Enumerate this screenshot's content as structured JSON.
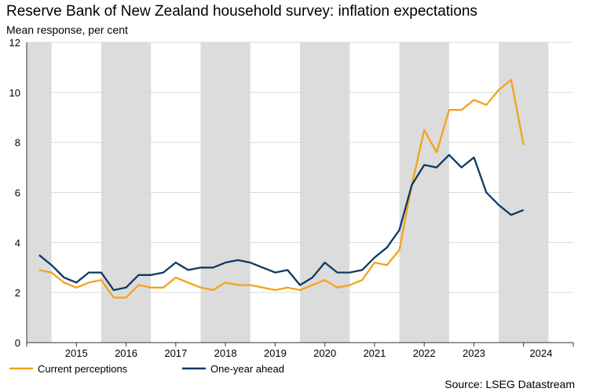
{
  "header": {
    "title": "Reserve Bank of New Zealand household survey: inflation expectations",
    "subtitle": "Mean response, per cent"
  },
  "footer": {
    "source": "Source: LSEG Datastream"
  },
  "colors": {
    "current": "#F4A21D",
    "one_year": "#0D3A63",
    "band": "#DCDCDC",
    "grid": "#D9D9D9",
    "axis": "#333333"
  },
  "chart_data": {
    "type": "line",
    "title": "Reserve Bank of New Zealand household survey: inflation expectations",
    "ylabel": "Mean response, per cent",
    "xlabel": "",
    "ylim": [
      0,
      12
    ],
    "yticks": [
      0,
      2,
      4,
      6,
      8,
      10,
      12
    ],
    "xlim": [
      2014.0,
      2025.0
    ],
    "x_tick_labels": [
      {
        "label": "2015",
        "pos": 2015.0
      },
      {
        "label": "2016",
        "pos": 2016.0
      },
      {
        "label": "2017",
        "pos": 2017.0
      },
      {
        "label": "2018",
        "pos": 2018.0
      },
      {
        "label": "2019",
        "pos": 2019.0
      },
      {
        "label": "2020",
        "pos": 2020.0
      },
      {
        "label": "2021",
        "pos": 2021.0
      },
      {
        "label": "2022",
        "pos": 2022.0
      },
      {
        "label": "2023",
        "pos": 2023.0
      },
      {
        "label": "2024",
        "pos": 2024.35
      }
    ],
    "shaded_periods": [
      [
        2014.0,
        2014.5
      ],
      [
        2015.5,
        2016.5
      ],
      [
        2017.5,
        2018.5
      ],
      [
        2019.5,
        2020.5
      ],
      [
        2021.5,
        2022.5
      ],
      [
        2023.5,
        2024.5
      ]
    ],
    "x": [
      2014.25,
      2014.5,
      2014.75,
      2015.0,
      2015.25,
      2015.5,
      2015.75,
      2016.0,
      2016.25,
      2016.5,
      2016.75,
      2017.0,
      2017.25,
      2017.5,
      2017.75,
      2018.0,
      2018.25,
      2018.5,
      2018.75,
      2019.0,
      2019.25,
      2019.5,
      2019.75,
      2020.0,
      2020.25,
      2020.5,
      2020.75,
      2021.0,
      2021.25,
      2021.5,
      2021.75,
      2022.0,
      2022.25,
      2022.5,
      2022.75,
      2023.0,
      2023.25,
      2023.5,
      2023.75,
      2024.0,
      2024.25
    ],
    "series": [
      {
        "name": "Current perceptions",
        "color": "#F4A21D",
        "values": [
          2.9,
          2.8,
          2.4,
          2.2,
          2.4,
          2.5,
          1.8,
          1.8,
          2.3,
          2.2,
          2.2,
          2.6,
          2.4,
          2.2,
          2.1,
          2.4,
          2.3,
          2.3,
          2.2,
          2.1,
          2.2,
          2.1,
          2.3,
          2.5,
          2.2,
          2.3,
          2.5,
          3.2,
          3.1,
          3.7,
          6.3,
          8.5,
          7.6,
          9.3,
          9.3,
          9.7,
          9.5,
          10.1,
          10.5,
          7.9,
          null
        ]
      },
      {
        "name": "One-year ahead",
        "color": "#0D3A63",
        "values": [
          3.5,
          3.1,
          2.6,
          2.4,
          2.8,
          2.8,
          2.1,
          2.2,
          2.7,
          2.7,
          2.8,
          3.2,
          2.9,
          3.0,
          3.0,
          3.2,
          3.3,
          3.2,
          3.0,
          2.8,
          2.9,
          2.3,
          2.6,
          3.2,
          2.8,
          2.8,
          2.9,
          3.4,
          3.8,
          4.5,
          6.3,
          7.1,
          7.0,
          7.5,
          7.0,
          7.4,
          6.0,
          5.5,
          5.1,
          5.3,
          null
        ]
      }
    ],
    "legend": [
      "Current perceptions",
      "One-year ahead"
    ],
    "legend_position": "bottom-left",
    "grid": true
  }
}
